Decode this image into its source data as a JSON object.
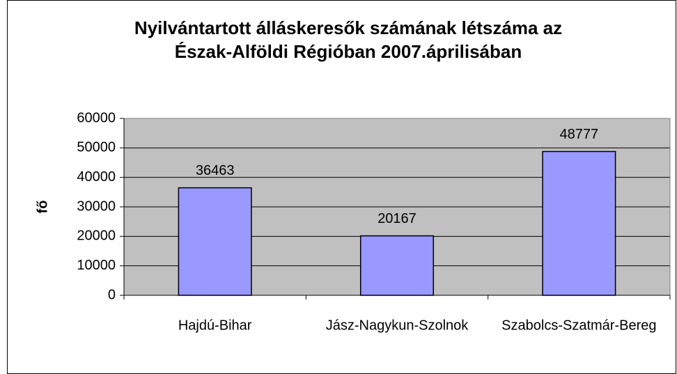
{
  "chart_data": {
    "type": "bar",
    "title": [
      "Nyilvántartott álláskeresők számának létszáma az",
      "Észak-Alföldi Régióban 2007.áprilisában"
    ],
    "y_label": "fő",
    "categories": [
      "Hajdú-Bihar",
      "Jász-Nagykun-Szolnok",
      "Szabolcs-Szatmár-Bereg"
    ],
    "values": [
      36463,
      20167,
      48777
    ],
    "color": "#9999ff",
    "ylim": [
      0,
      60000
    ],
    "yticks": [
      0,
      10000,
      20000,
      30000,
      40000,
      50000,
      60000
    ],
    "grid": true
  }
}
